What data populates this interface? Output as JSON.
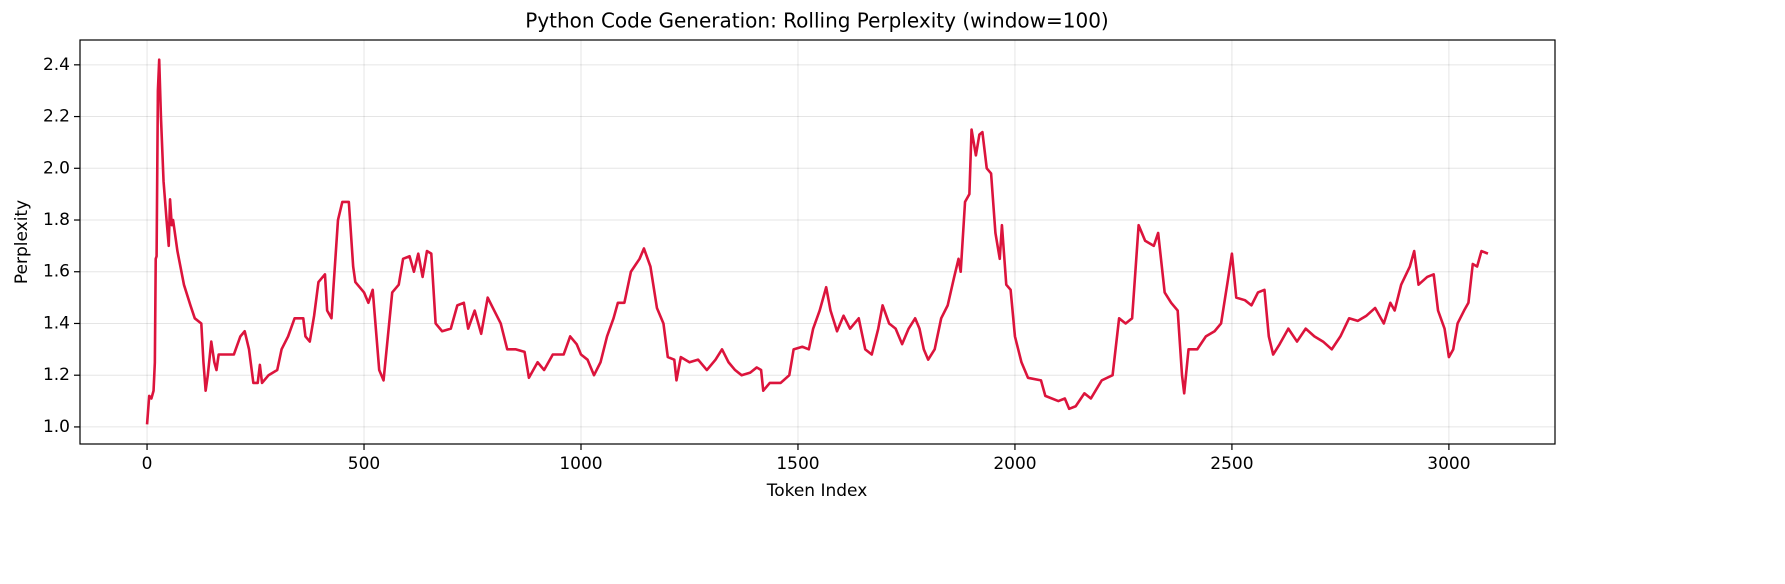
{
  "chart_data": {
    "type": "line",
    "title": "Python Code Generation: Rolling Perplexity (window=100)",
    "x_label": "Token Index",
    "y_label": "Perplexity",
    "color": "#dc143c",
    "grid": true,
    "xlim": [
      -154.5,
      3244.5
    ],
    "ylim": [
      0.934,
      2.496
    ],
    "xticks": [
      0,
      500,
      1000,
      1500,
      2000,
      2500,
      3000
    ],
    "yticks": [
      {
        "value": 1,
        "label": "1.0"
      },
      1.2,
      1.4,
      1.6,
      1.8,
      {
        "value": 2,
        "label": "2.0"
      },
      2.2,
      2.4
    ],
    "x": [
      0,
      5,
      10,
      15,
      18,
      20,
      22,
      25,
      28,
      32,
      38,
      45,
      50,
      53,
      57,
      60,
      70,
      85,
      100,
      110,
      125,
      130,
      135,
      140,
      148,
      155,
      160,
      165,
      200,
      215,
      225,
      235,
      245,
      255,
      260,
      265,
      280,
      300,
      310,
      325,
      340,
      360,
      365,
      375,
      385,
      395,
      410,
      415,
      425,
      430,
      440,
      450,
      465,
      475,
      480,
      500,
      510,
      520,
      535,
      545,
      555,
      565,
      580,
      590,
      605,
      615,
      625,
      635,
      645,
      655,
      665,
      680,
      700,
      715,
      730,
      740,
      755,
      770,
      785,
      800,
      815,
      830,
      850,
      870,
      880,
      890,
      900,
      915,
      935,
      960,
      975,
      990,
      1000,
      1015,
      1030,
      1045,
      1060,
      1075,
      1085,
      1100,
      1115,
      1135,
      1145,
      1160,
      1175,
      1190,
      1200,
      1215,
      1220,
      1230,
      1250,
      1270,
      1290,
      1310,
      1325,
      1340,
      1355,
      1370,
      1390,
      1405,
      1415,
      1420,
      1435,
      1460,
      1480,
      1490,
      1510,
      1525,
      1535,
      1550,
      1565,
      1575,
      1590,
      1605,
      1620,
      1640,
      1655,
      1670,
      1685,
      1695,
      1710,
      1725,
      1740,
      1755,
      1770,
      1780,
      1790,
      1800,
      1815,
      1830,
      1845,
      1860,
      1870,
      1875,
      1885,
      1895,
      1900,
      1910,
      1918,
      1925,
      1935,
      1945,
      1955,
      1965,
      1970,
      1980,
      1990,
      2000,
      2015,
      2030,
      2060,
      2070,
      2100,
      2115,
      2125,
      2140,
      2160,
      2175,
      2200,
      2225,
      2240,
      2255,
      2270,
      2285,
      2300,
      2320,
      2330,
      2345,
      2360,
      2375,
      2385,
      2390,
      2400,
      2420,
      2440,
      2460,
      2475,
      2490,
      2500,
      2510,
      2530,
      2545,
      2560,
      2575,
      2585,
      2595,
      2610,
      2630,
      2650,
      2670,
      2690,
      2710,
      2730,
      2750,
      2770,
      2790,
      2810,
      2830,
      2850,
      2865,
      2875,
      2890,
      2910,
      2920,
      2930,
      2950,
      2965,
      2975,
      2990,
      3000,
      3010,
      3020,
      3035,
      3045,
      3055,
      3065,
      3075,
      3090
    ],
    "values": [
      1.01,
      1.12,
      1.11,
      1.14,
      1.25,
      1.65,
      1.66,
      2.3,
      2.42,
      2.2,
      1.95,
      1.8,
      1.7,
      1.88,
      1.78,
      1.8,
      1.68,
      1.55,
      1.47,
      1.42,
      1.4,
      1.25,
      1.14,
      1.2,
      1.33,
      1.25,
      1.22,
      1.28,
      1.28,
      1.35,
      1.37,
      1.3,
      1.17,
      1.17,
      1.24,
      1.17,
      1.2,
      1.22,
      1.3,
      1.35,
      1.42,
      1.42,
      1.35,
      1.33,
      1.43,
      1.56,
      1.59,
      1.45,
      1.42,
      1.55,
      1.8,
      1.87,
      1.87,
      1.62,
      1.56,
      1.52,
      1.48,
      1.53,
      1.22,
      1.18,
      1.35,
      1.52,
      1.55,
      1.65,
      1.66,
      1.6,
      1.67,
      1.58,
      1.68,
      1.67,
      1.4,
      1.37,
      1.38,
      1.47,
      1.48,
      1.38,
      1.45,
      1.36,
      1.5,
      1.45,
      1.4,
      1.3,
      1.3,
      1.29,
      1.19,
      1.22,
      1.25,
      1.22,
      1.28,
      1.28,
      1.35,
      1.32,
      1.28,
      1.26,
      1.2,
      1.25,
      1.35,
      1.42,
      1.48,
      1.48,
      1.6,
      1.65,
      1.69,
      1.62,
      1.46,
      1.4,
      1.27,
      1.26,
      1.18,
      1.27,
      1.25,
      1.26,
      1.22,
      1.26,
      1.3,
      1.25,
      1.22,
      1.2,
      1.21,
      1.23,
      1.22,
      1.14,
      1.17,
      1.17,
      1.2,
      1.3,
      1.31,
      1.3,
      1.38,
      1.45,
      1.54,
      1.45,
      1.37,
      1.43,
      1.38,
      1.42,
      1.3,
      1.28,
      1.38,
      1.47,
      1.4,
      1.38,
      1.32,
      1.38,
      1.42,
      1.38,
      1.3,
      1.26,
      1.3,
      1.42,
      1.47,
      1.58,
      1.65,
      1.6,
      1.87,
      1.9,
      2.15,
      2.05,
      2.13,
      2.14,
      2.0,
      1.98,
      1.75,
      1.65,
      1.78,
      1.55,
      1.53,
      1.35,
      1.25,
      1.19,
      1.18,
      1.12,
      1.1,
      1.11,
      1.07,
      1.08,
      1.13,
      1.11,
      1.18,
      1.2,
      1.42,
      1.4,
      1.42,
      1.78,
      1.72,
      1.7,
      1.75,
      1.52,
      1.48,
      1.45,
      1.2,
      1.13,
      1.3,
      1.3,
      1.35,
      1.37,
      1.4,
      1.56,
      1.67,
      1.5,
      1.49,
      1.47,
      1.52,
      1.53,
      1.35,
      1.28,
      1.32,
      1.38,
      1.33,
      1.38,
      1.35,
      1.33,
      1.3,
      1.35,
      1.42,
      1.41,
      1.43,
      1.46,
      1.4,
      1.48,
      1.45,
      1.55,
      1.62,
      1.68,
      1.55,
      1.58,
      1.59,
      1.45,
      1.38,
      1.27,
      1.3,
      1.4,
      1.45,
      1.48,
      1.63,
      1.62,
      1.68,
      1.67
    ]
  }
}
